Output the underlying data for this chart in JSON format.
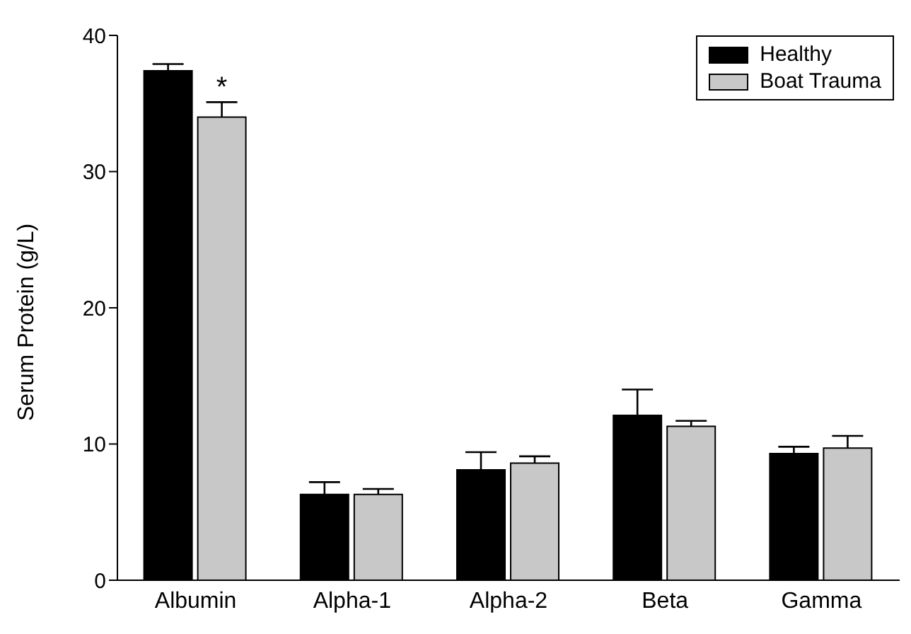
{
  "chart_data": {
    "type": "bar",
    "ylabel": "Serum Protein (g/L)",
    "categories": [
      "Albumin",
      "Alpha-1",
      "Alpha-2",
      "Beta",
      "Gamma"
    ],
    "series": [
      {
        "name": "Healthy",
        "color": "#000000",
        "values": [
          37.4,
          6.3,
          8.1,
          12.1,
          9.3
        ],
        "errors": [
          [
            37.4,
            37.9
          ],
          [
            6.3,
            7.2
          ],
          [
            8.1,
            9.4
          ],
          [
            12.1,
            14.0
          ],
          [
            9.3,
            9.8
          ]
        ]
      },
      {
        "name": "Boat Trauma",
        "color": "#c8c8c8",
        "values": [
          34.0,
          6.3,
          8.6,
          11.3,
          9.7
        ],
        "errors": [
          [
            34.0,
            35.1
          ],
          [
            6.3,
            6.7
          ],
          [
            8.6,
            9.1
          ],
          [
            11.3,
            11.7
          ],
          [
            9.7,
            10.6
          ]
        ]
      }
    ],
    "ylim": [
      0,
      40
    ],
    "yticks": [
      0,
      10,
      20,
      30,
      40
    ],
    "grid": false,
    "legend": "top right",
    "annotations": [
      {
        "text": "*",
        "x": "Albumin",
        "y": 35.1
      }
    ]
  }
}
